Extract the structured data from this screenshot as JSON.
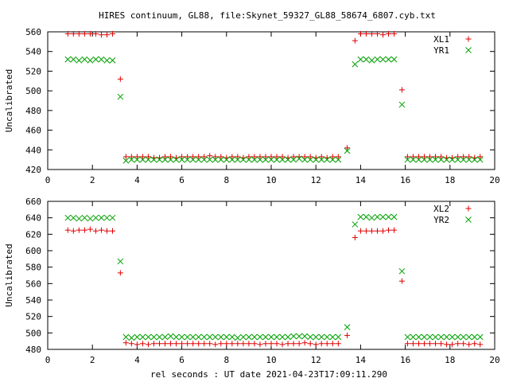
{
  "title": "HIRES continuum, GL88, file:Skynet_59327_GL88_58674_6807.cyb.txt",
  "xlabel": "rel seconds : UT date 2021-04-23T17:09:11.290",
  "chart_data": [
    {
      "type": "scatter",
      "ylabel": "Uncalibrated",
      "xlim": [
        0,
        20
      ],
      "ylim": [
        420,
        560
      ],
      "xticks": [
        0,
        2,
        4,
        6,
        8,
        10,
        12,
        14,
        16,
        18,
        20
      ],
      "yticks": [
        420,
        440,
        460,
        480,
        500,
        520,
        540,
        560
      ],
      "grid": false,
      "legend": "top-right",
      "series": [
        {
          "name": "XL1",
          "marker": "plus",
          "color": "#e00000",
          "x": [
            0.9,
            1.15,
            1.4,
            1.65,
            1.9,
            2.15,
            2.4,
            2.65,
            2.9,
            3.25,
            3.5,
            3.75,
            4.0,
            4.25,
            4.5,
            4.75,
            5.0,
            5.25,
            5.5,
            5.75,
            6.0,
            6.25,
            6.5,
            6.75,
            7.0,
            7.25,
            7.5,
            7.75,
            8.0,
            8.25,
            8.5,
            8.75,
            9.0,
            9.25,
            9.5,
            9.75,
            10.0,
            10.25,
            10.5,
            10.75,
            11.0,
            11.25,
            11.5,
            11.75,
            12.0,
            12.25,
            12.5,
            12.75,
            13.0,
            13.4,
            13.75,
            14.0,
            14.25,
            14.5,
            14.75,
            15.0,
            15.25,
            15.5,
            15.85,
            16.1,
            16.35,
            16.6,
            16.85,
            17.1,
            17.35,
            17.6,
            17.85,
            18.1,
            18.35,
            18.6,
            18.85,
            19.1,
            19.35
          ],
          "y": [
            558,
            558,
            558,
            558,
            558,
            558,
            557,
            557,
            558,
            512,
            433,
            433,
            433,
            433,
            433,
            432,
            432,
            433,
            433,
            432,
            433,
            433,
            433,
            433,
            433,
            434,
            433,
            433,
            432,
            433,
            433,
            432,
            433,
            433,
            433,
            433,
            433,
            433,
            433,
            432,
            433,
            433,
            433,
            433,
            432,
            433,
            432,
            433,
            433,
            442,
            551,
            558,
            558,
            558,
            558,
            557,
            558,
            558,
            501,
            433,
            433,
            433,
            433,
            433,
            433,
            433,
            432,
            432,
            433,
            433,
            433,
            432,
            433
          ]
        },
        {
          "name": "YR1",
          "marker": "cross",
          "color": "#00a000",
          "x": [
            0.9,
            1.15,
            1.4,
            1.65,
            1.9,
            2.15,
            2.4,
            2.65,
            2.9,
            3.25,
            3.5,
            3.75,
            4.0,
            4.25,
            4.5,
            4.75,
            5.0,
            5.25,
            5.5,
            5.75,
            6.0,
            6.25,
            6.5,
            6.75,
            7.0,
            7.25,
            7.5,
            7.75,
            8.0,
            8.25,
            8.5,
            8.75,
            9.0,
            9.25,
            9.5,
            9.75,
            10.0,
            10.25,
            10.5,
            10.75,
            11.0,
            11.25,
            11.5,
            11.75,
            12.0,
            12.25,
            12.5,
            12.75,
            13.0,
            13.4,
            13.75,
            14.0,
            14.25,
            14.5,
            14.75,
            15.0,
            15.25,
            15.5,
            15.85,
            16.1,
            16.35,
            16.6,
            16.85,
            17.1,
            17.35,
            17.6,
            17.85,
            18.1,
            18.35,
            18.6,
            18.85,
            19.1,
            19.35
          ],
          "y": [
            532,
            532,
            531,
            532,
            531,
            532,
            532,
            531,
            531,
            494,
            429,
            430,
            430,
            430,
            430,
            430,
            430,
            430,
            430,
            430,
            430,
            430,
            430,
            430,
            430,
            430,
            430,
            430,
            430,
            430,
            430,
            430,
            430,
            430,
            430,
            430,
            430,
            430,
            430,
            430,
            430,
            431,
            430,
            430,
            430,
            430,
            430,
            430,
            430,
            439,
            527,
            532,
            532,
            531,
            532,
            532,
            532,
            532,
            486,
            430,
            430,
            430,
            430,
            430,
            430,
            430,
            430,
            430,
            430,
            430,
            430,
            430,
            430
          ]
        }
      ]
    },
    {
      "type": "scatter",
      "ylabel": "Uncalibrated",
      "xlim": [
        0,
        20
      ],
      "ylim": [
        480,
        660
      ],
      "xticks": [
        0,
        2,
        4,
        6,
        8,
        10,
        12,
        14,
        16,
        18,
        20
      ],
      "yticks": [
        480,
        500,
        520,
        540,
        560,
        580,
        600,
        620,
        640,
        660
      ],
      "grid": false,
      "legend": "top-right",
      "series": [
        {
          "name": "XL2",
          "marker": "plus",
          "color": "#e00000",
          "x": [
            0.9,
            1.15,
            1.4,
            1.65,
            1.9,
            2.15,
            2.4,
            2.65,
            2.9,
            3.25,
            3.5,
            3.75,
            4.0,
            4.25,
            4.5,
            4.75,
            5.0,
            5.25,
            5.5,
            5.75,
            6.0,
            6.25,
            6.5,
            6.75,
            7.0,
            7.25,
            7.5,
            7.75,
            8.0,
            8.25,
            8.5,
            8.75,
            9.0,
            9.25,
            9.5,
            9.75,
            10.0,
            10.25,
            10.5,
            10.75,
            11.0,
            11.25,
            11.5,
            11.75,
            12.0,
            12.25,
            12.5,
            12.75,
            13.0,
            13.4,
            13.75,
            14.0,
            14.25,
            14.5,
            14.75,
            15.0,
            15.25,
            15.5,
            15.85,
            16.1,
            16.35,
            16.6,
            16.85,
            17.1,
            17.35,
            17.6,
            17.85,
            18.1,
            18.35,
            18.6,
            18.85,
            19.1,
            19.35
          ],
          "y": [
            625,
            624,
            625,
            625,
            626,
            624,
            625,
            624,
            624,
            573,
            488,
            487,
            486,
            487,
            486,
            487,
            487,
            487,
            487,
            487,
            487,
            487,
            487,
            487,
            487,
            487,
            486,
            487,
            487,
            487,
            487,
            487,
            487,
            487,
            486,
            487,
            487,
            487,
            486,
            487,
            487,
            487,
            488,
            487,
            486,
            487,
            487,
            487,
            487,
            497,
            616,
            624,
            624,
            624,
            624,
            624,
            625,
            625,
            563,
            487,
            487,
            487,
            487,
            487,
            487,
            487,
            486,
            486,
            487,
            487,
            486,
            487,
            486
          ]
        },
        {
          "name": "YR2",
          "marker": "cross",
          "color": "#00a000",
          "x": [
            0.9,
            1.15,
            1.4,
            1.65,
            1.9,
            2.15,
            2.4,
            2.65,
            2.9,
            3.25,
            3.5,
            3.75,
            4.0,
            4.25,
            4.5,
            4.75,
            5.0,
            5.25,
            5.5,
            5.75,
            6.0,
            6.25,
            6.5,
            6.75,
            7.0,
            7.25,
            7.5,
            7.75,
            8.0,
            8.25,
            8.5,
            8.75,
            9.0,
            9.25,
            9.5,
            9.75,
            10.0,
            10.25,
            10.5,
            10.75,
            11.0,
            11.25,
            11.5,
            11.75,
            12.0,
            12.25,
            12.5,
            12.75,
            13.0,
            13.4,
            13.75,
            14.0,
            14.25,
            14.5,
            14.75,
            15.0,
            15.25,
            15.5,
            15.85,
            16.1,
            16.35,
            16.6,
            16.85,
            17.1,
            17.35,
            17.6,
            17.85,
            18.1,
            18.35,
            18.6,
            18.85,
            19.1,
            19.35
          ],
          "y": [
            640,
            640,
            639,
            640,
            639,
            640,
            640,
            640,
            640,
            587,
            495,
            494,
            495,
            495,
            495,
            495,
            495,
            495,
            496,
            495,
            495,
            495,
            495,
            495,
            495,
            495,
            495,
            495,
            495,
            495,
            494,
            495,
            495,
            495,
            495,
            495,
            495,
            495,
            495,
            495,
            496,
            496,
            496,
            495,
            495,
            495,
            495,
            495,
            495,
            507,
            632,
            641,
            641,
            640,
            641,
            641,
            641,
            641,
            575,
            495,
            495,
            495,
            495,
            495,
            495,
            495,
            495,
            495,
            495,
            495,
            495,
            495,
            495
          ]
        }
      ]
    }
  ]
}
